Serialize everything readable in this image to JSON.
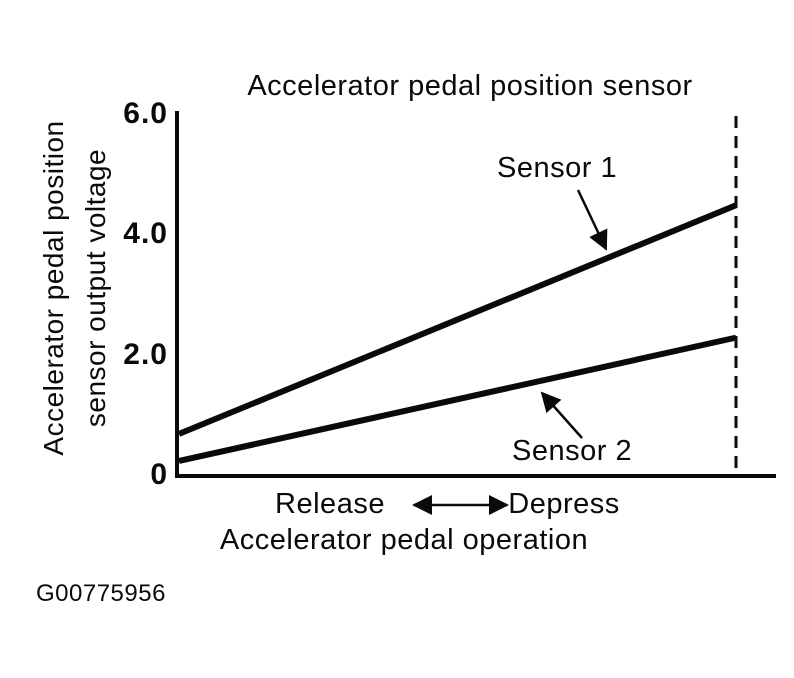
{
  "figure": {
    "title": "Accelerator pedal position sensor",
    "figure_id": "G00775956"
  },
  "y_axis": {
    "label_line1": "Accelerator pedal position",
    "label_line2": "sensor output voltage",
    "ticks": [
      {
        "value": 6.0,
        "label": "6.0"
      },
      {
        "value": 4.0,
        "label": "4.0"
      },
      {
        "value": 2.0,
        "label": "2.0"
      },
      {
        "value": 0,
        "label": "0"
      }
    ]
  },
  "x_axis": {
    "left_direction_label": "Release",
    "right_direction_label": "Depress",
    "axis_label": "Accelerator pedal operation"
  },
  "series_labels": {
    "sensor1": "Sensor 1",
    "sensor2": "Sensor 2"
  },
  "chart_data": {
    "type": "line",
    "title": "Accelerator pedal position sensor",
    "ylabel": "Accelerator pedal position sensor output voltage",
    "xlabel": "Accelerator pedal operation",
    "x_direction_labels": {
      "left": "Release",
      "right": "Depress"
    },
    "ylim": [
      0,
      6.0
    ],
    "yticks": [
      0,
      2.0,
      4.0,
      6.0
    ],
    "grid": false,
    "series": [
      {
        "name": "Sensor 1",
        "voltage_at_release": 0.7,
        "voltage_at_full_depress": 4.5
      },
      {
        "name": "Sensor 2",
        "voltage_at_release": 0.25,
        "voltage_at_full_depress": 2.3
      }
    ],
    "annotations": [
      "Dashed vertical line marks full depress position",
      "Arrow callouts point from series labels to their lines",
      "Double-headed arrow between Release and Depress"
    ],
    "legend_position": "inline-labels"
  }
}
